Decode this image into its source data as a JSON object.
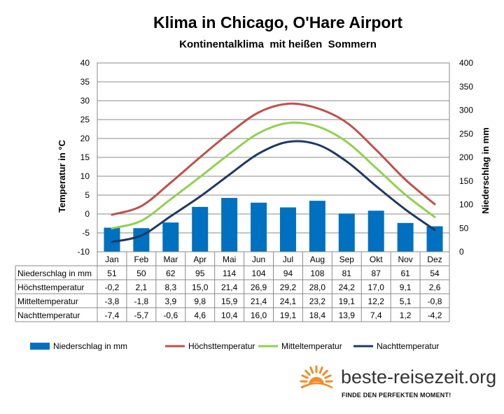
{
  "chart_data": {
    "type": "bar+line",
    "title": "Klima in Chicago, O'Hare Airport",
    "subtitle": "Kontinentalklima  mit heißen  Sommern",
    "ylabel_left": "Temperatur in °C",
    "ylabel_right": "Niederschlag in mm",
    "ylim_left": [
      -10,
      40
    ],
    "ylim_right": [
      0,
      400
    ],
    "yticks_left": [
      "40",
      "35",
      "30",
      "25",
      "20",
      "15",
      "10",
      "5",
      "0",
      "-5",
      "-10"
    ],
    "yticks_right": [
      "400",
      "350",
      "300",
      "250",
      "200",
      "150",
      "100",
      "50",
      "0"
    ],
    "categories": [
      "Jan",
      "Feb",
      "Mar",
      "Apr",
      "Mai",
      "Jun",
      "Jul",
      "Aug",
      "Sep",
      "Okt",
      "Nov",
      "Dez"
    ],
    "grid": true,
    "legend_position": "bottom",
    "series": [
      {
        "name": "Niederschlag in mm",
        "type": "bar",
        "axis": "right",
        "color": "#0070C0",
        "values": [
          51,
          50,
          62,
          95,
          114,
          104,
          94,
          108,
          81,
          87,
          61,
          54
        ],
        "labels": [
          "51",
          "50",
          "62",
          "95",
          "114",
          "104",
          "94",
          "108",
          "81",
          "87",
          "61",
          "54"
        ]
      },
      {
        "name": "Höchsttemperatur",
        "type": "line",
        "axis": "left",
        "color": "#C0504D",
        "values": [
          -0.2,
          2.1,
          8.3,
          15.0,
          21.4,
          26.9,
          29.2,
          28.0,
          24.2,
          17.0,
          9.1,
          2.6
        ],
        "labels": [
          "-0,2",
          "2,1",
          "8,3",
          "15,0",
          "21,4",
          "26,9",
          "29,2",
          "28,0",
          "24,2",
          "17,0",
          "9,1",
          "2,6"
        ]
      },
      {
        "name": "Mitteltemperatur",
        "type": "line",
        "axis": "left",
        "color": "#92D050",
        "values": [
          -3.8,
          -1.8,
          3.9,
          9.8,
          15.9,
          21.4,
          24.1,
          23.2,
          19.1,
          12.2,
          5.1,
          -0.8
        ],
        "labels": [
          "-3,8",
          "-1,8",
          "3,9",
          "9,8",
          "15,9",
          "21,4",
          "24,1",
          "23,2",
          "19,1",
          "12,2",
          "5,1",
          "-0,8"
        ]
      },
      {
        "name": "Nachttemperatur",
        "type": "line",
        "axis": "left",
        "color": "#1F3864",
        "values": [
          -7.4,
          -5.7,
          -0.6,
          4.6,
          10.4,
          16.0,
          19.1,
          18.4,
          13.9,
          7.4,
          1.2,
          -4.2
        ],
        "labels": [
          "-7,4",
          "-5,7",
          "-0,6",
          "4,6",
          "10,4",
          "16,0",
          "19,1",
          "18,4",
          "13,9",
          "7,4",
          "1,2",
          "-4,2"
        ]
      }
    ]
  },
  "table": {
    "rows": [
      "Niederschlag in mm",
      "Höchsttemperatur",
      "Mitteltemperatur",
      "Nachttemperatur"
    ]
  },
  "branding": {
    "name": "beste-reisezeit.org",
    "slogan": "FINDE DEN PERFEKTEN MOMENT!",
    "icon": "sun-icon",
    "accent": "#F28C28"
  }
}
